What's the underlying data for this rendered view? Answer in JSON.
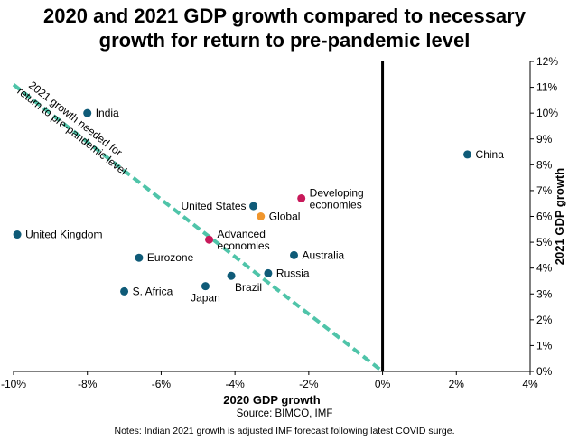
{
  "title_lines": [
    "2020 and 2021 GDP growth compared to necessary",
    "growth for return to pre-pandemic level"
  ],
  "source": "Source: BIMCO, IMF",
  "notes": "Notes: Indian 2021 growth is adjusted IMF forecast following latest COVID surge.",
  "colors": {
    "country": "#0f5b78",
    "aggregate_pink": "#c8195a",
    "global_orange": "#f0962d",
    "threshold": "#4fc4a9",
    "axis": "#000000"
  },
  "chart_data": {
    "type": "scatter",
    "xlabel": "2020 GDP growth",
    "ylabel": "2021 GDP growth",
    "xlim": [
      -10,
      4
    ],
    "ylim": [
      0,
      12
    ],
    "x_ticks": [
      -10,
      -8,
      -6,
      -4,
      -2,
      0,
      2,
      4
    ],
    "x_tick_labels": [
      "-10%",
      "-8%",
      "-6%",
      "-4%",
      "-2%",
      "0%",
      "2%",
      "4%"
    ],
    "y_ticks": [
      0,
      1,
      2,
      3,
      4,
      5,
      6,
      7,
      8,
      9,
      10,
      11,
      12
    ],
    "y_tick_labels": [
      "0%",
      "1%",
      "2%",
      "3%",
      "4%",
      "5%",
      "6%",
      "7%",
      "8%",
      "9%",
      "10%",
      "11%",
      "12%"
    ],
    "y_axis_position": "right",
    "grid": false,
    "threshold_line": {
      "label": "2021 growth needed for return to pre-pandemic level",
      "label_lines": [
        "2021 growth needed for",
        "return to pre-pandemic level"
      ],
      "x": [
        -10,
        0
      ],
      "y": [
        11.1,
        0
      ]
    },
    "points": [
      {
        "name": "India",
        "x": -8.0,
        "y": 10.0,
        "group": "country",
        "label_pos": "right"
      },
      {
        "name": "China",
        "x": 2.3,
        "y": 8.4,
        "group": "country",
        "label_pos": "right"
      },
      {
        "name": "United States",
        "x": -3.5,
        "y": 6.4,
        "group": "country",
        "label_pos": "left"
      },
      {
        "name": "Developing economies",
        "x": -2.2,
        "y": 6.7,
        "group": "aggregate",
        "label_pos": "right",
        "label_lines": [
          "Developing",
          "economies"
        ]
      },
      {
        "name": "Global",
        "x": -3.3,
        "y": 6.0,
        "group": "global",
        "label_pos": "right"
      },
      {
        "name": "United Kingdom",
        "x": -9.9,
        "y": 5.3,
        "group": "country",
        "label_pos": "right"
      },
      {
        "name": "Advanced economies",
        "x": -4.7,
        "y": 5.1,
        "group": "aggregate",
        "label_pos": "right",
        "label_lines": [
          "Advanced",
          "economies"
        ]
      },
      {
        "name": "Australia",
        "x": -2.4,
        "y": 4.5,
        "group": "country",
        "label_pos": "right"
      },
      {
        "name": "Eurozone",
        "x": -6.6,
        "y": 4.4,
        "group": "country",
        "label_pos": "right"
      },
      {
        "name": "Russia",
        "x": -3.1,
        "y": 3.8,
        "group": "country",
        "label_pos": "right"
      },
      {
        "name": "Brazil",
        "x": -4.1,
        "y": 3.7,
        "group": "country",
        "label_pos": "below-right"
      },
      {
        "name": "Japan",
        "x": -4.8,
        "y": 3.3,
        "group": "country",
        "label_pos": "below"
      },
      {
        "name": "S. Africa",
        "x": -7.0,
        "y": 3.1,
        "group": "country",
        "label_pos": "right"
      }
    ]
  }
}
